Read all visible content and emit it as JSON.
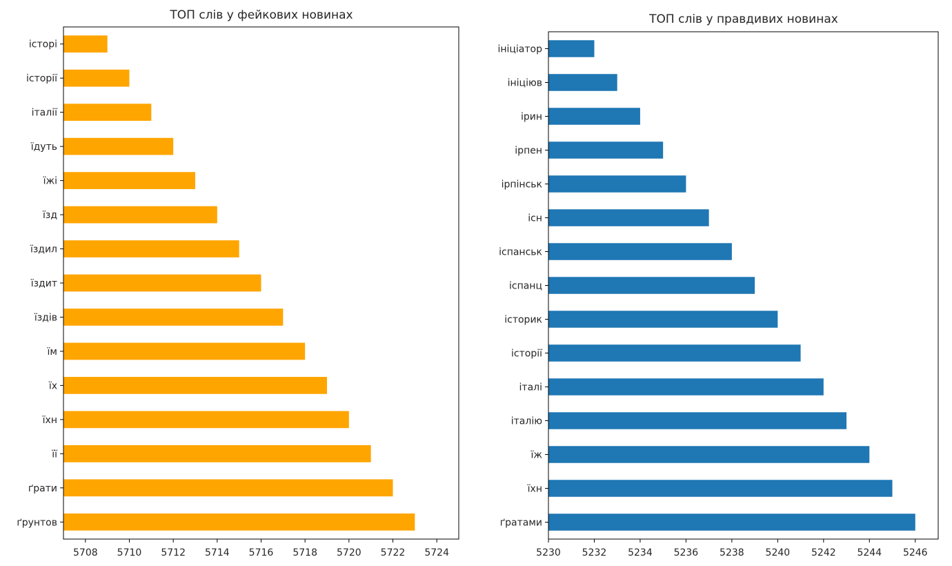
{
  "chart_data": [
    {
      "type": "bar",
      "orientation": "horizontal",
      "title": "ТОП слів у фейкових новинах",
      "xlabel": "",
      "ylabel": "",
      "color": "#ffa500",
      "xlim": [
        5707,
        5725
      ],
      "xticks": [
        5708,
        5710,
        5712,
        5714,
        5716,
        5718,
        5720,
        5722,
        5724
      ],
      "categories": [
        "історі",
        "історії",
        "італії",
        "їдуть",
        "їжі",
        "їзд",
        "їздил",
        "їздит",
        "їздів",
        "їм",
        "їх",
        "їхн",
        "її",
        "ґрати",
        "ґрунтов"
      ],
      "values": [
        5709,
        5710,
        5711,
        5712,
        5713,
        5714,
        5715,
        5716,
        5717,
        5718,
        5719,
        5720,
        5721,
        5722,
        5723
      ],
      "grid": false,
      "legend": false
    },
    {
      "type": "bar",
      "orientation": "horizontal",
      "title": "ТОП слів у правдивих новинах",
      "xlabel": "",
      "ylabel": "",
      "color": "#1f77b4",
      "xlim": [
        5230,
        5247
      ],
      "xticks": [
        5230,
        5232,
        5234,
        5236,
        5238,
        5240,
        5242,
        5244,
        5246
      ],
      "categories": [
        "ініціатор",
        "ініціюв",
        "ірин",
        "ірпен",
        "ірпінськ",
        "існ",
        "іспанськ",
        "іспанц",
        "історик",
        "історії",
        "італі",
        "італію",
        "їж",
        "їхн",
        "ґратами"
      ],
      "values": [
        5232,
        5233,
        5234,
        5235,
        5236,
        5237,
        5238,
        5239,
        5240,
        5241,
        5242,
        5243,
        5244,
        5245,
        5246
      ],
      "grid": false,
      "legend": false
    }
  ]
}
